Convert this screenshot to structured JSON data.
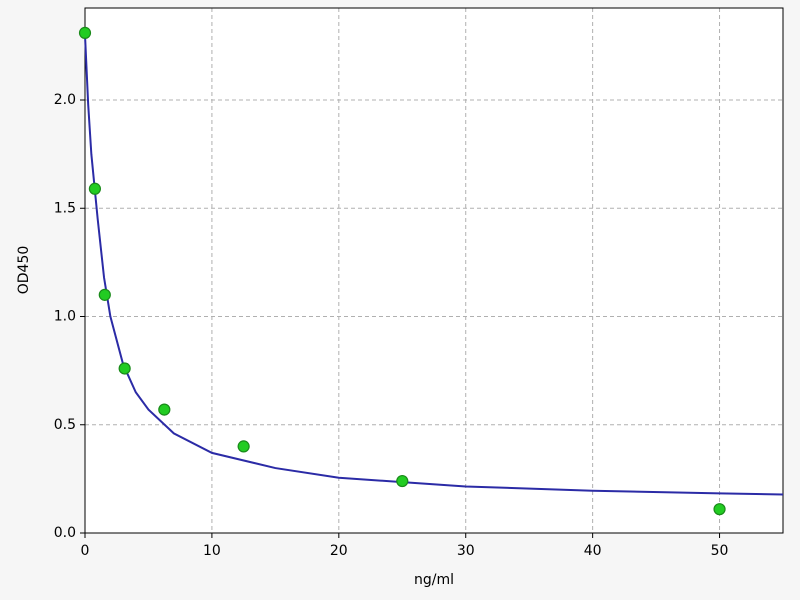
{
  "chart_data": {
    "type": "scatter",
    "x_label": "ng/ml",
    "y_label": "OD450",
    "x": [
      0,
      0.78,
      1.56,
      3.125,
      6.25,
      12.5,
      25,
      50
    ],
    "values": [
      2.31,
      1.59,
      1.1,
      0.76,
      0.57,
      0.4,
      0.24,
      0.11
    ],
    "color": "#22cc22",
    "curve": {
      "x": [
        0,
        0.25,
        0.5,
        1,
        1.5,
        2,
        3,
        4,
        5,
        7,
        10,
        15,
        20,
        25,
        30,
        40,
        50,
        55
      ],
      "values": [
        2.3,
        1.98,
        1.75,
        1.45,
        1.18,
        1.0,
        0.78,
        0.65,
        0.57,
        0.46,
        0.37,
        0.3,
        0.255,
        0.235,
        0.215,
        0.195,
        0.183,
        0.178
      ],
      "color": "#2b2ba6"
    },
    "xlim": [
      0,
      55
    ],
    "ylim": [
      0,
      2.425
    ],
    "xticks": [
      0,
      10,
      20,
      30,
      40,
      50
    ],
    "yticks": [
      {
        "value": 0,
        "label": "0.0"
      },
      0.5,
      {
        "value": 1,
        "label": "1.0"
      },
      1.5,
      {
        "value": 2,
        "label": "2.0"
      }
    ],
    "grid": true
  }
}
